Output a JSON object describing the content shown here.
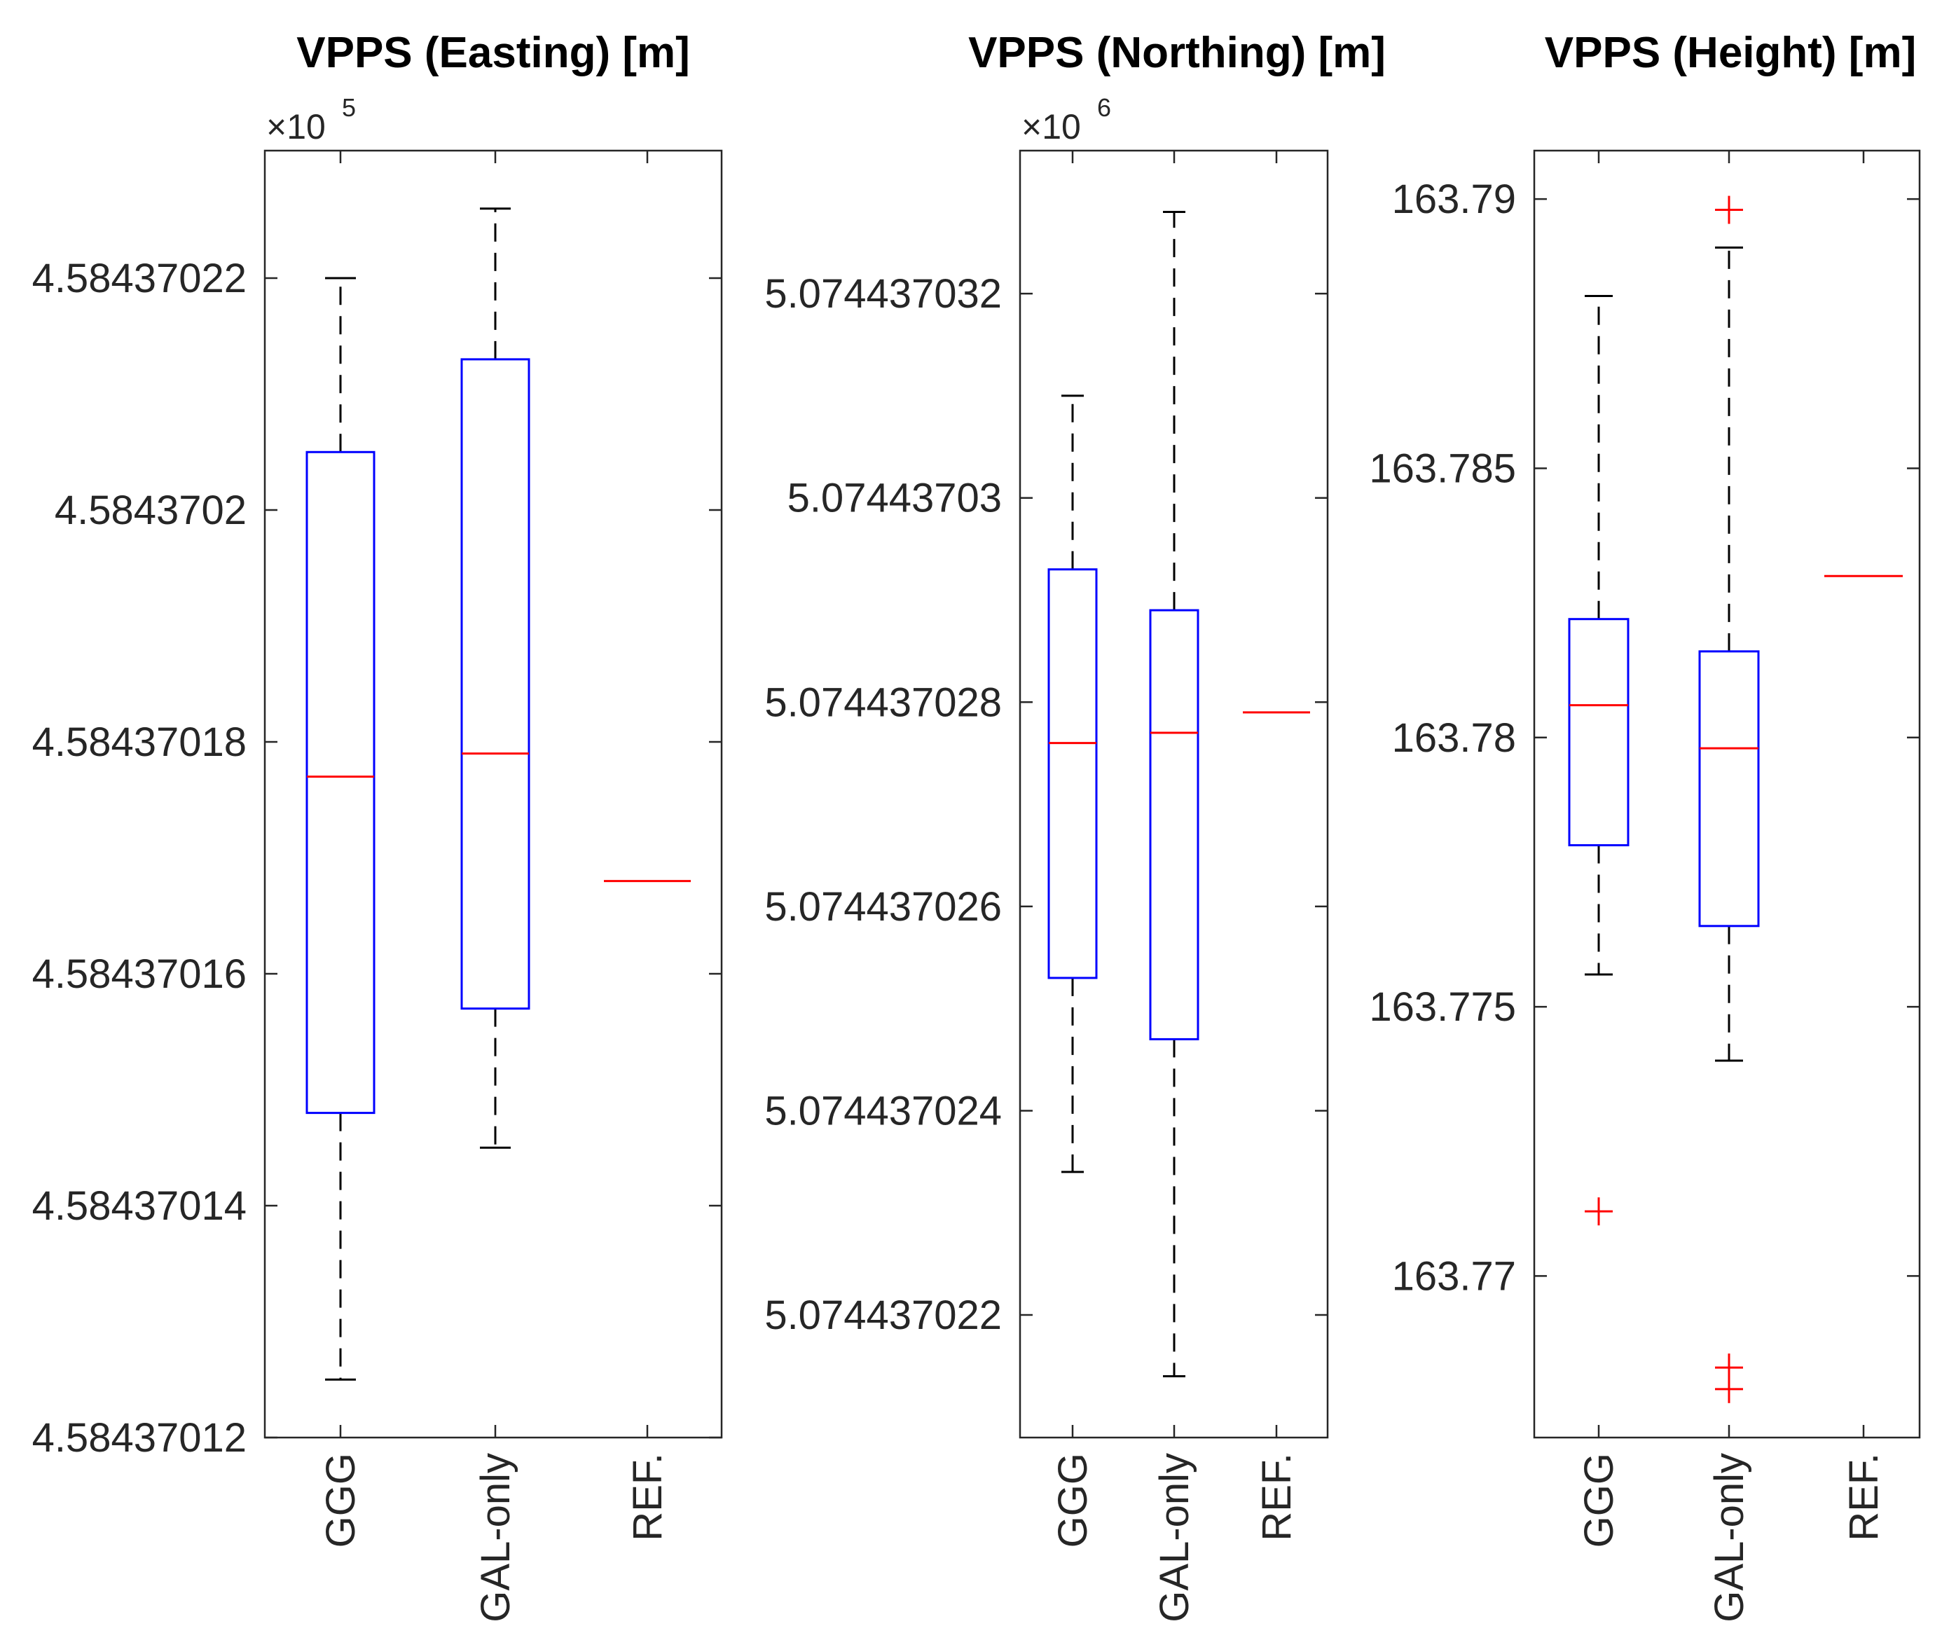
{
  "chart_data": [
    {
      "type": "boxplot",
      "title": "VPPS (Easting) [m]",
      "scale_note": "×10",
      "scale_exponent": "5",
      "categories": [
        "GGG",
        "GAL-only",
        "REF."
      ],
      "ylim": [
        4.58437012,
        4.584370231
      ],
      "yticks": [
        4.58437012,
        4.58437014,
        4.58437016,
        4.58437018,
        4.5843702,
        4.58437022
      ],
      "ytick_labels": [
        "4.58437012",
        "4.58437014",
        "4.58437016",
        "4.58437018",
        "4.5843702",
        "4.58437022"
      ],
      "boxes": [
        {
          "name": "GGG",
          "whisker_low": 4.584370125,
          "q1": 4.584370148,
          "median": 4.584370177,
          "q3": 4.584370205,
          "whisker_high": 4.58437022,
          "outliers": []
        },
        {
          "name": "GAL-only",
          "whisker_low": 4.584370145,
          "q1": 4.584370157,
          "median": 4.584370179,
          "q3": 4.584370213,
          "whisker_high": 4.584370226,
          "outliers": []
        },
        {
          "name": "REF.",
          "median": 4.584370168
        }
      ]
    },
    {
      "type": "boxplot",
      "title": "VPPS (Northing) [m]",
      "scale_note": "×10",
      "scale_exponent": "6",
      "categories": [
        "GGG",
        "GAL-only",
        "REF."
      ],
      "ylim": [
        5.0744370208,
        5.0744370334
      ],
      "yticks": [
        5.074437022,
        5.074437024,
        5.074437026,
        5.074437028,
        5.07443703,
        5.074437032
      ],
      "ytick_labels": [
        "5.074437022",
        "5.074437024",
        "5.074437026",
        "5.074437028",
        "5.07443703",
        "5.074437032"
      ],
      "boxes": [
        {
          "name": "GGG",
          "whisker_low": 5.0744370234,
          "q1": 5.0744370253,
          "median": 5.0744370276,
          "q3": 5.0744370293,
          "whisker_high": 5.074437031,
          "outliers": []
        },
        {
          "name": "GAL-only",
          "whisker_low": 5.0744370214,
          "q1": 5.0744370247,
          "median": 5.0744370277,
          "q3": 5.0744370289,
          "whisker_high": 5.0744370328,
          "outliers": []
        },
        {
          "name": "REF.",
          "median": 5.0744370279
        }
      ]
    },
    {
      "type": "boxplot",
      "title": "VPPS (Height) [m]",
      "scale_note": "",
      "scale_exponent": "",
      "categories": [
        "GGG",
        "GAL-only",
        "REF."
      ],
      "ylim": [
        163.767,
        163.7909
      ],
      "yticks": [
        163.77,
        163.775,
        163.78,
        163.785,
        163.79
      ],
      "ytick_labels": [
        "163.77",
        "163.775",
        "163.78",
        "163.785",
        "163.79"
      ],
      "boxes": [
        {
          "name": "GGG",
          "whisker_low": 163.7756,
          "q1": 163.778,
          "median": 163.7806,
          "q3": 163.7822,
          "whisker_high": 163.7882,
          "outliers": [
            163.7712
          ]
        },
        {
          "name": "GAL-only",
          "whisker_low": 163.774,
          "q1": 163.7765,
          "median": 163.7798,
          "q3": 163.7816,
          "whisker_high": 163.7891,
          "outliers": [
            163.7898,
            163.7683,
            163.7679
          ]
        },
        {
          "name": "REF.",
          "median": 163.783
        }
      ]
    }
  ]
}
